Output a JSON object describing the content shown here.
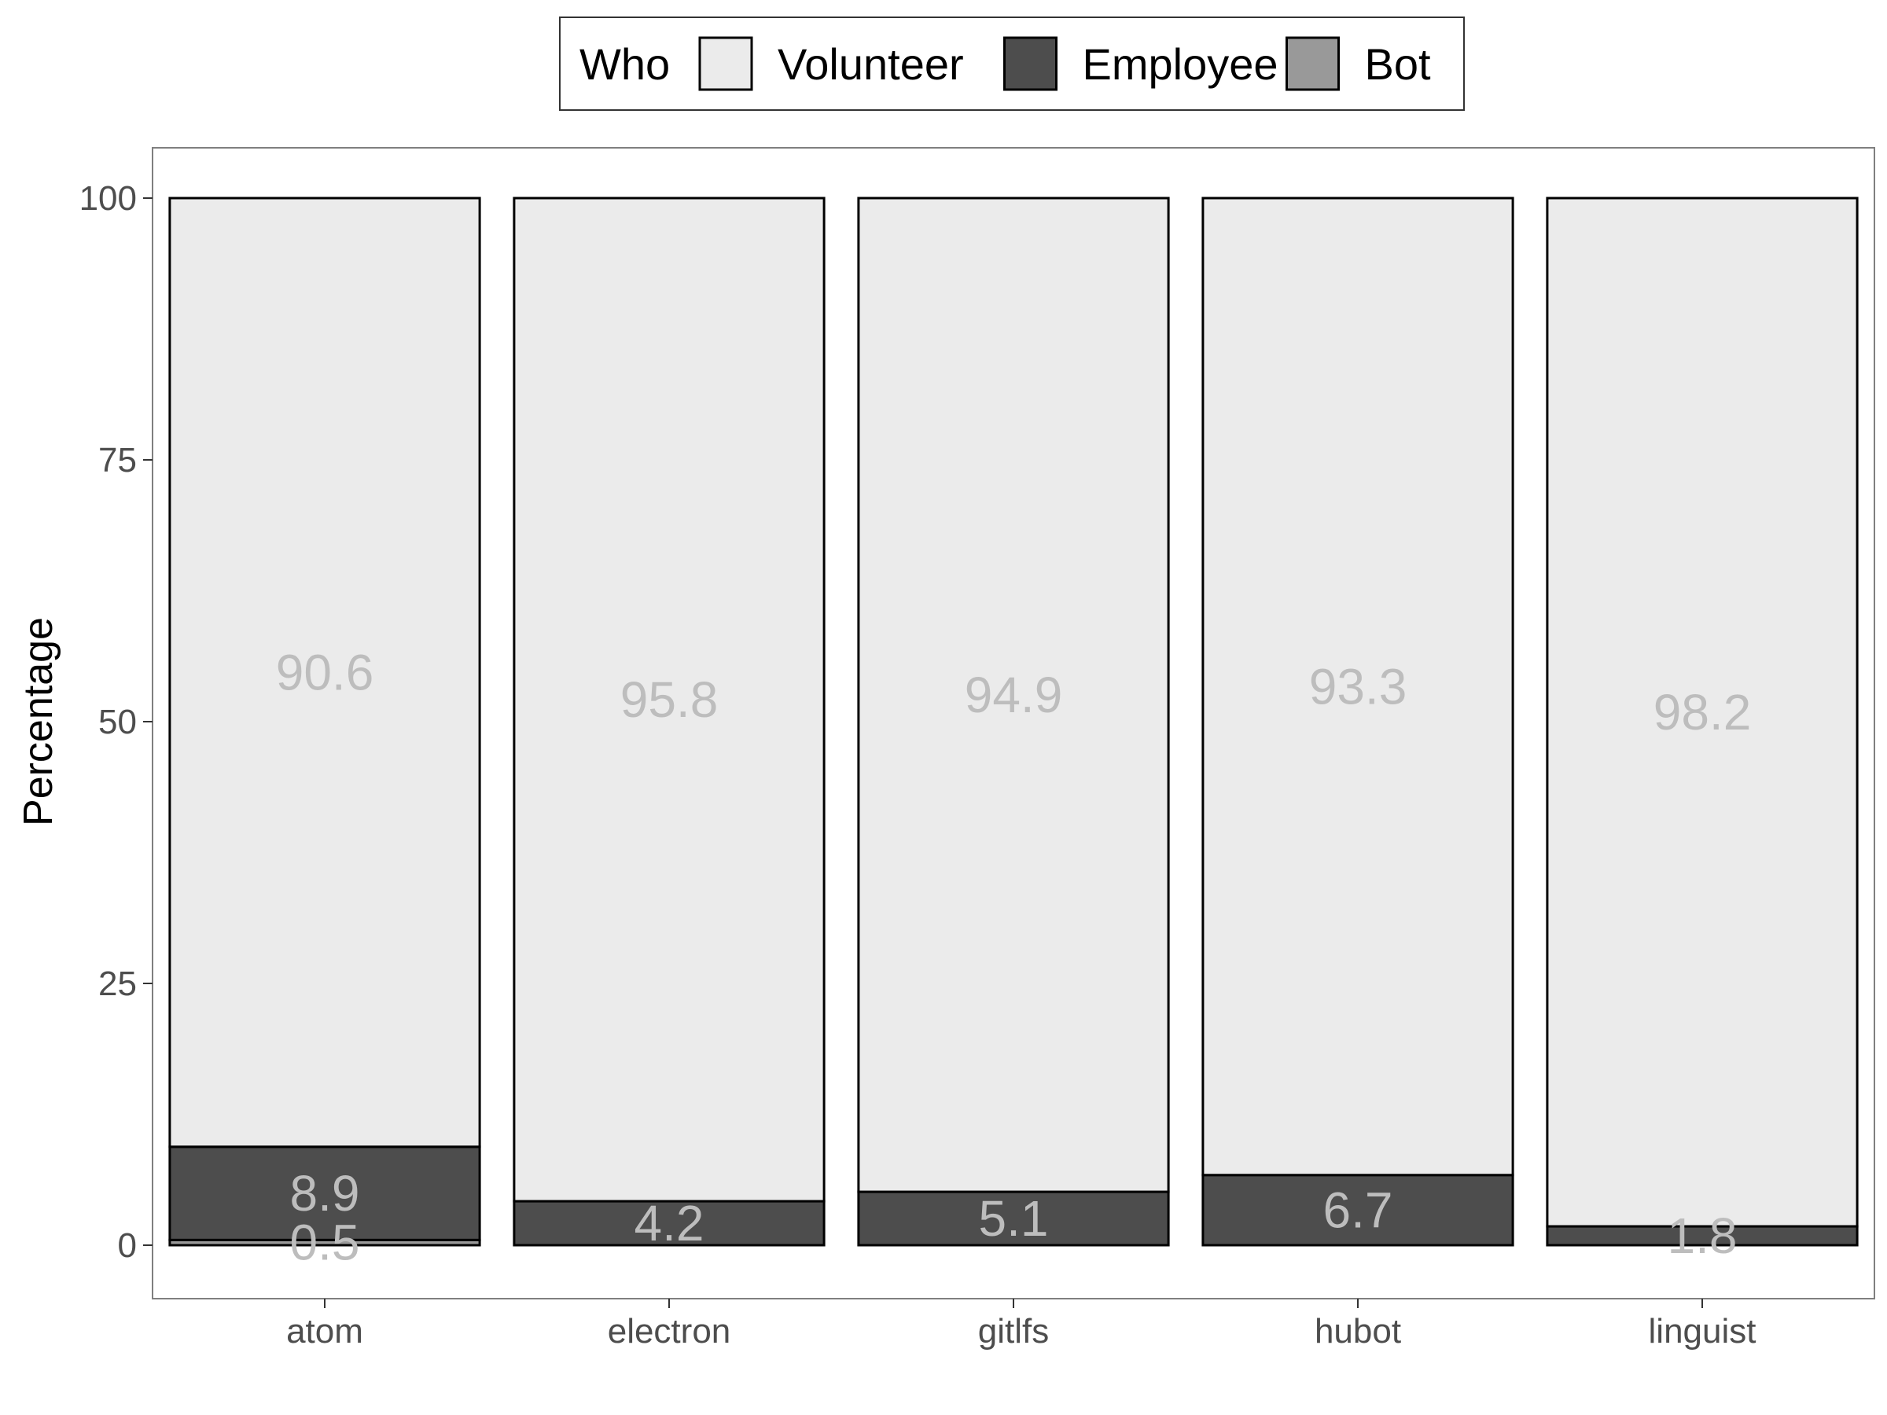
{
  "chart_data": {
    "type": "bar",
    "stacked": true,
    "categories": [
      "atom",
      "electron",
      "gitlfs",
      "hubot",
      "linguist"
    ],
    "series": [
      {
        "name": "Bot",
        "values": [
          0.5,
          0,
          0,
          0,
          0
        ],
        "color": "#999999"
      },
      {
        "name": "Employee",
        "values": [
          8.9,
          4.2,
          5.1,
          6.7,
          1.8
        ],
        "color": "#4d4d4d"
      },
      {
        "name": "Volunteer",
        "values": [
          90.6,
          95.8,
          94.9,
          93.3,
          98.2
        ],
        "color": "#ebebeb"
      }
    ],
    "data_labels": [
      {
        "category": "atom",
        "series": "Volunteer",
        "text": "90.6"
      },
      {
        "category": "atom",
        "series": "Employee",
        "text": "8.9"
      },
      {
        "category": "atom",
        "series": "Bot",
        "text": "0.5"
      },
      {
        "category": "electron",
        "series": "Volunteer",
        "text": "95.8"
      },
      {
        "category": "electron",
        "series": "Employee",
        "text": "4.2"
      },
      {
        "category": "gitlfs",
        "series": "Volunteer",
        "text": "94.9"
      },
      {
        "category": "gitlfs",
        "series": "Employee",
        "text": "5.1"
      },
      {
        "category": "hubot",
        "series": "Volunteer",
        "text": "93.3"
      },
      {
        "category": "hubot",
        "series": "Employee",
        "text": "6.7"
      },
      {
        "category": "linguist",
        "series": "Volunteer",
        "text": "98.2"
      },
      {
        "category": "linguist",
        "series": "Employee",
        "text": "1.8"
      }
    ],
    "ylabel": "Percentage",
    "xlabel": "",
    "ylim": [
      -5,
      105
    ],
    "yticks": [
      0,
      25,
      50,
      75,
      100
    ],
    "grid": false,
    "legend": {
      "title": "Who",
      "position": "top",
      "entries": [
        {
          "label": "Volunteer",
          "color": "#ebebeb"
        },
        {
          "label": "Employee",
          "color": "#4d4d4d"
        },
        {
          "label": "Bot",
          "color": "#999999"
        }
      ]
    }
  }
}
